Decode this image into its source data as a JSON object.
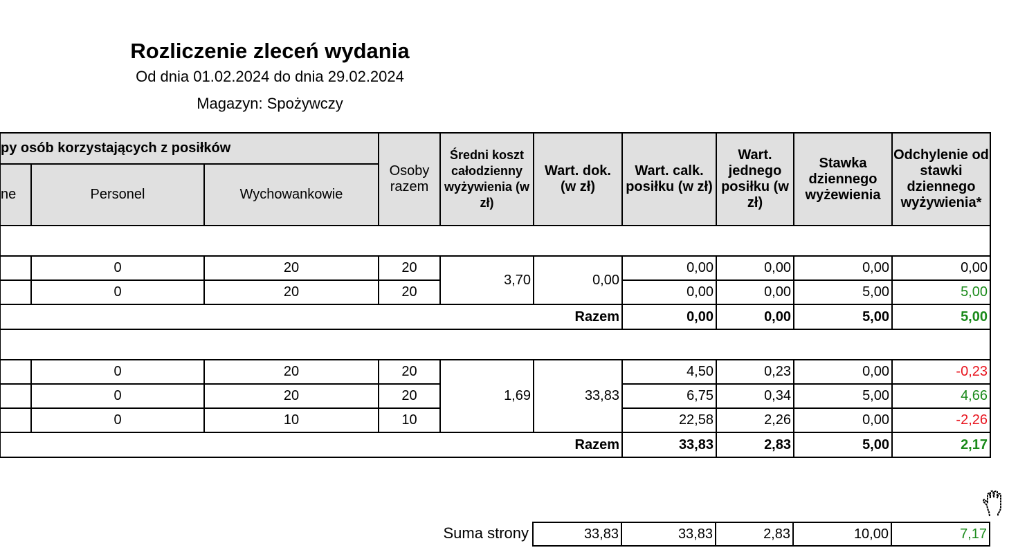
{
  "header": {
    "title": "Rozliczenie zleceń wydania",
    "period": "Od dnia 01.02.2024 do dnia 29.02.2024",
    "warehouse": "Magazyn: Spożywczy"
  },
  "columns": {
    "group": "py osób korzystających z posiłków",
    "first": "ne",
    "personel": "Personel",
    "wychowankowie": "Wychowankowie",
    "osoby": "Osoby razem",
    "sredni": "Średni koszt całodzienny wyżywienia (w zł)",
    "wart_dok": "Wart. dok. (w zł)",
    "wart_calk": "Wart. calk. posiłku (w zł)",
    "wart_jednego": "Wart. jednego posiłku (w zł)",
    "stawka": "Stawka dziennego wyżewienia",
    "odchylenie": "Odchylenie od stawki dziennego wyżywienia*"
  },
  "colors": {
    "positive": "#1a8a1a",
    "negative": "#e8141e",
    "header_bg": "#e0e0e0"
  },
  "sections": [
    {
      "sredni": "3,70",
      "wart_dok": "0,00",
      "rows": [
        {
          "personel": "0",
          "wychowankowie": "20",
          "osoby": "20",
          "wart_calk": "0,00",
          "wart_jednego": "0,00",
          "stawka": "0,00",
          "odchylenie": "0,00"
        },
        {
          "personel": "0",
          "wychowankowie": "20",
          "osoby": "20",
          "wart_calk": "0,00",
          "wart_jednego": "0,00",
          "stawka": "5,00",
          "odchylenie": "5,00"
        }
      ],
      "razem": {
        "label": "Razem",
        "wart_calk": "0,00",
        "wart_jednego": "0,00",
        "stawka": "5,00",
        "odchylenie": "5,00"
      }
    },
    {
      "sredni": "1,69",
      "wart_dok": "33,83",
      "rows": [
        {
          "personel": "0",
          "wychowankowie": "20",
          "osoby": "20",
          "wart_calk": "4,50",
          "wart_jednego": "0,23",
          "stawka": "0,00",
          "odchylenie": "-0,23"
        },
        {
          "personel": "0",
          "wychowankowie": "20",
          "osoby": "20",
          "wart_calk": "6,75",
          "wart_jednego": "0,34",
          "stawka": "5,00",
          "odchylenie": "4,66"
        },
        {
          "personel": "0",
          "wychowankowie": "10",
          "osoby": "10",
          "wart_calk": "22,58",
          "wart_jednego": "2,26",
          "stawka": "0,00",
          "odchylenie": "-2,26"
        }
      ],
      "razem": {
        "label": "Razem",
        "wart_calk": "33,83",
        "wart_jednego": "2,83",
        "stawka": "5,00",
        "odchylenie": "2,17"
      }
    }
  ],
  "suma": {
    "label": "Suma strony",
    "wart_dok": "33,83",
    "wart_calk": "33,83",
    "wart_jednego": "2,83",
    "stawka": "10,00",
    "odchylenie": "7,17"
  },
  "cursor": "hand-grab-icon"
}
